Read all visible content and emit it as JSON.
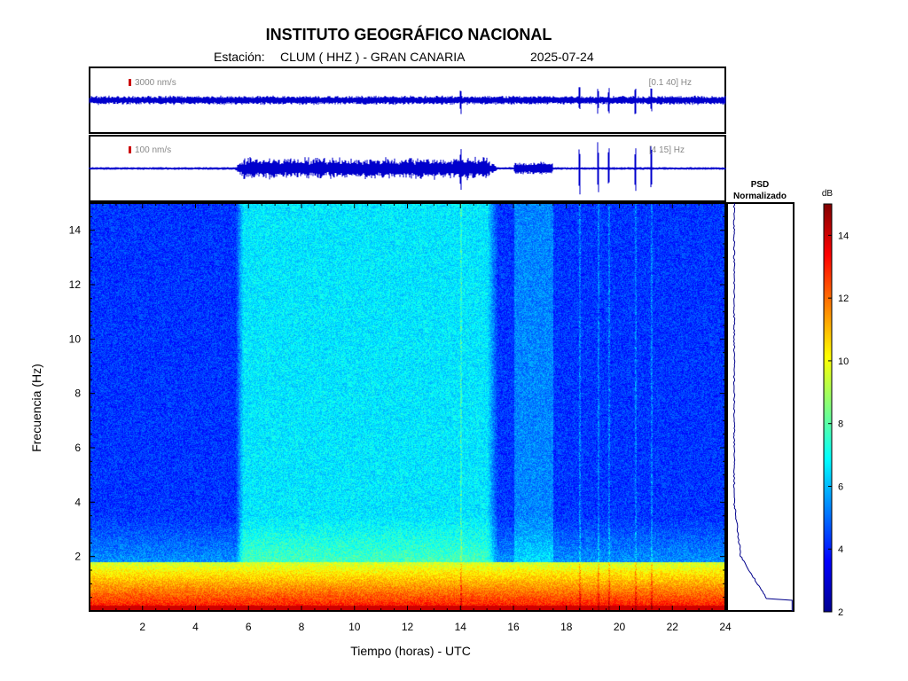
{
  "header": {
    "title": "INSTITUTO GEOGRÁFICO NACIONAL",
    "station_prefix": "Estación:",
    "station": "CLUM ( HHZ ) - GRAN CANARIA",
    "date": "2025-07-24"
  },
  "traces": [
    {
      "scale_label": "3000 nm/s",
      "band_label": "[0.1 40] Hz",
      "scale_color": "#cc0000"
    },
    {
      "scale_label": "100 nm/s",
      "band_label": "[4 15] Hz",
      "scale_color": "#cc0000"
    }
  ],
  "psd": {
    "title_line1": "PSD",
    "title_line2": "Normalizado"
  },
  "colorbar": {
    "unit": "dB",
    "ticks": [
      2,
      4,
      6,
      8,
      10,
      12,
      14
    ],
    "range": [
      2,
      15
    ]
  },
  "chart_data": {
    "type": "heatmap",
    "title": "INSTITUTO GEOGRÁFICO NACIONAL",
    "xlabel": "Tiempo (horas) - UTC",
    "ylabel": "Frecuencia  (Hz)",
    "xlim": [
      0,
      24
    ],
    "ylim": [
      0,
      15
    ],
    "xticks": [
      2,
      4,
      6,
      8,
      10,
      12,
      14,
      16,
      18,
      20,
      22,
      24
    ],
    "yticks": [
      2,
      4,
      6,
      8,
      10,
      12,
      14
    ],
    "colormap": "jet",
    "colors": {
      "trace": "#0000cc",
      "psd_line": "#00008b"
    },
    "daytime_noise_hours": [
      5.8,
      15.0
    ],
    "evening_noise_hours": [
      16.0,
      17.5
    ],
    "events_hours": [
      14.0,
      18.5,
      19.2,
      19.6,
      20.6,
      21.2
    ]
  }
}
